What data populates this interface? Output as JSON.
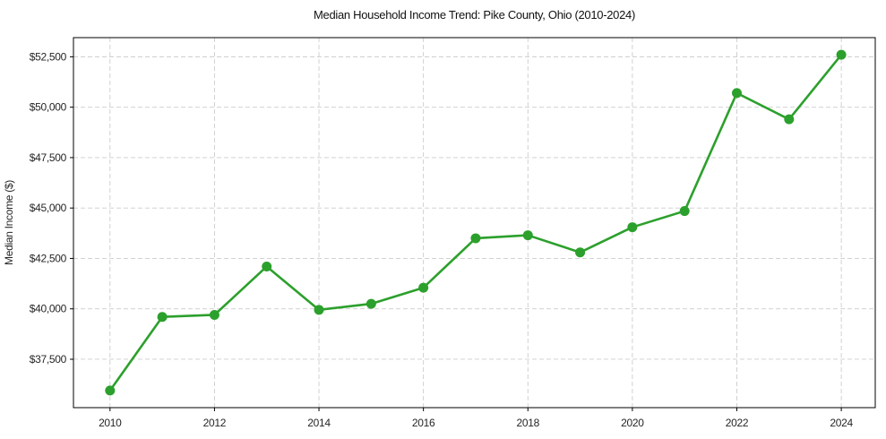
{
  "chart_data": {
    "type": "line",
    "title": "Median Household Income Trend: Pike County, Ohio (2010-2024)",
    "xlabel": "",
    "ylabel": "Median Income ($)",
    "x": [
      2010,
      2011,
      2012,
      2013,
      2014,
      2015,
      2016,
      2017,
      2018,
      2019,
      2020,
      2021,
      2022,
      2023,
      2024
    ],
    "values": [
      35950,
      39600,
      39700,
      42100,
      39950,
      40250,
      41050,
      43500,
      43650,
      42800,
      44050,
      44850,
      50700,
      49400,
      52600
    ],
    "series_name": "Median Household Income",
    "x_ticks": [
      2010,
      2012,
      2014,
      2016,
      2018,
      2020,
      2022,
      2024
    ],
    "x_tick_labels": [
      "2010",
      "2012",
      "2014",
      "2016",
      "2018",
      "2020",
      "2022",
      "2024"
    ],
    "y_ticks": [
      37500,
      40000,
      42500,
      45000,
      47500,
      50000,
      52500
    ],
    "y_tick_labels": [
      "$37,500",
      "$40,000",
      "$42,500",
      "$45,000",
      "$47,500",
      "$50,000",
      "$52,500"
    ],
    "xlim": [
      2009.3,
      2024.65
    ],
    "ylim": [
      35100,
      53450
    ],
    "grid": true,
    "grid_style": "dashed",
    "legend": false,
    "line_color": "#2ca02c",
    "marker_color": "#2ca02c",
    "grid_color": "#cccccc",
    "axis_color": "#000000",
    "text_color": "#262626"
  }
}
